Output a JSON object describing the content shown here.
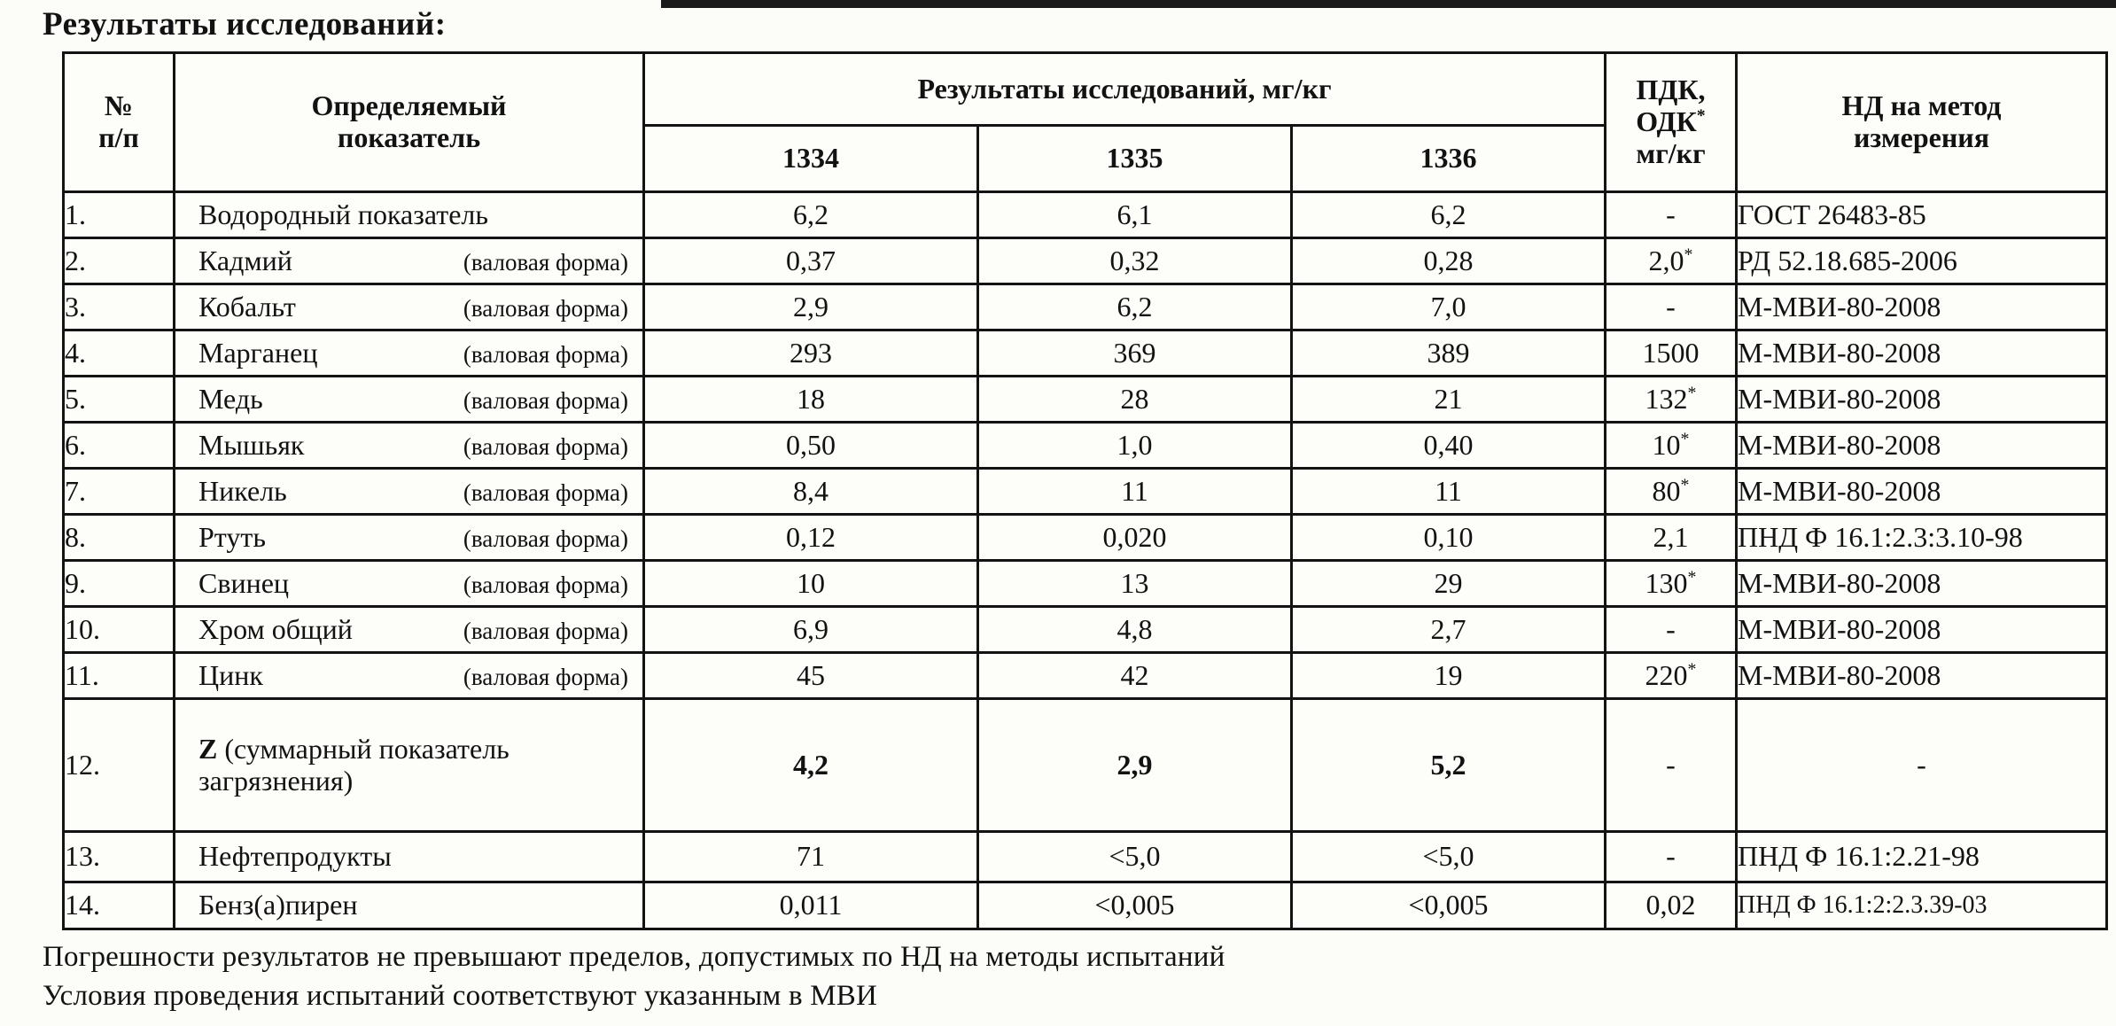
{
  "page": {
    "title": "Результаты исследований:"
  },
  "table": {
    "header": {
      "num_l1": "№",
      "num_l2": "п/п",
      "param_l1": "Определяемый",
      "param_l2": "показатель",
      "results_group": "Результаты исследований, мг/кг",
      "sample_1": "1334",
      "sample_2": "1335",
      "sample_3": "1336",
      "pdk_l1": "ПДК,",
      "pdk_l2": "ОДК",
      "pdk_star": "*",
      "pdk_l3": "мг/кг",
      "nd_l1": "НД на метод",
      "nd_l2": "измерения"
    },
    "rows": [
      {
        "num": "1.",
        "name_bold": "",
        "name": "Водородный показатель",
        "form": "",
        "v1": "6,2",
        "v2": "6,1",
        "v3": "6,2",
        "pdk": "-",
        "pdk_star": "",
        "nd": "ГОСТ 26483-85"
      },
      {
        "num": "2.",
        "name_bold": "",
        "name": "Кадмий",
        "form": "(валовая форма)",
        "v1": "0,37",
        "v2": "0,32",
        "v3": "0,28",
        "pdk": "2,0",
        "pdk_star": "*",
        "nd": "РД 52.18.685-2006"
      },
      {
        "num": "3.",
        "name_bold": "",
        "name": "Кобальт",
        "form": "(валовая форма)",
        "v1": "2,9",
        "v2": "6,2",
        "v3": "7,0",
        "pdk": "-",
        "pdk_star": "",
        "nd": "М-МВИ-80-2008"
      },
      {
        "num": "4.",
        "name_bold": "",
        "name": "Марганец",
        "form": "(валовая форма)",
        "v1": "293",
        "v2": "369",
        "v3": "389",
        "pdk": "1500",
        "pdk_star": "",
        "nd": "М-МВИ-80-2008"
      },
      {
        "num": "5.",
        "name_bold": "",
        "name": "Медь",
        "form": "(валовая форма)",
        "v1": "18",
        "v2": "28",
        "v3": "21",
        "pdk": "132",
        "pdk_star": "*",
        "nd": "М-МВИ-80-2008"
      },
      {
        "num": "6.",
        "name_bold": "",
        "name": "Мышьяк",
        "form": "(валовая форма)",
        "v1": "0,50",
        "v2": "1,0",
        "v3": "0,40",
        "pdk": "10",
        "pdk_star": "*",
        "nd": "М-МВИ-80-2008"
      },
      {
        "num": "7.",
        "name_bold": "",
        "name": "Никель",
        "form": "(валовая форма)",
        "v1": "8,4",
        "v2": "11",
        "v3": "11",
        "pdk": "80",
        "pdk_star": "*",
        "nd": "М-МВИ-80-2008"
      },
      {
        "num": "8.",
        "name_bold": "",
        "name": "Ртуть",
        "form": "(валовая форма)",
        "v1": "0,12",
        "v2": "0,020",
        "v3": "0,10",
        "pdk": "2,1",
        "pdk_star": "",
        "nd": "ПНД Ф 16.1:2.3:3.10-98"
      },
      {
        "num": "9.",
        "name_bold": "",
        "name": "Свинец",
        "form": "(валовая форма)",
        "v1": "10",
        "v2": "13",
        "v3": "29",
        "pdk": "130",
        "pdk_star": "*",
        "nd": "М-МВИ-80-2008"
      },
      {
        "num": "10.",
        "name_bold": "",
        "name": "Хром общий",
        "form": "(валовая форма)",
        "v1": "6,9",
        "v2": "4,8",
        "v3": "2,7",
        "pdk": "-",
        "pdk_star": "",
        "nd": "М-МВИ-80-2008"
      },
      {
        "num": "11.",
        "name_bold": "",
        "name": "Цинк",
        "form": "(валовая форма)",
        "v1": "45",
        "v2": "42",
        "v3": "19",
        "pdk": "220",
        "pdk_star": "*",
        "nd": "М-МВИ-80-2008"
      },
      {
        "num": "12.",
        "name_bold": "Z ",
        "name": "(суммарный показатель загрязнения)",
        "form": "",
        "v1": "4,2",
        "v2": "2,9",
        "v3": "5,2",
        "pdk": "-",
        "pdk_star": "",
        "nd": "-"
      },
      {
        "num": "13.",
        "name_bold": "",
        "name": "Нефтепродукты",
        "form": "",
        "v1": "71",
        "v2": "<5,0",
        "v3": "<5,0",
        "pdk": "-",
        "pdk_star": "",
        "nd": "ПНД Ф 16.1:2.21-98"
      },
      {
        "num": "14.",
        "name_bold": "",
        "name": "Бенз(а)пирен",
        "form": "",
        "v1": "0,011",
        "v2": "<0,005",
        "v3": "<0,005",
        "pdk": "0,02",
        "pdk_star": "",
        "nd": "ПНД Ф 16.1:2:2.3.39-03"
      }
    ]
  },
  "footnotes": [
    "Погрешности результатов не превышают пределов, допустимых по НД на методы испытаний",
    "Условия проведения испытаний соответствуют указанным в МВИ"
  ]
}
